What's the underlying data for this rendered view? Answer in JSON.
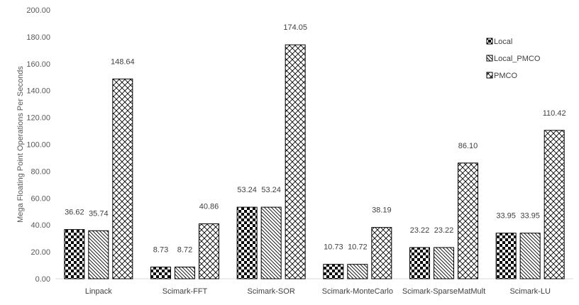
{
  "chart_data": {
    "type": "bar",
    "title": "",
    "xlabel": "",
    "ylabel": "Mega Floating Point Operations Per Seconds",
    "ylim": [
      0,
      200
    ],
    "yticks": [
      0,
      20,
      40,
      60,
      80,
      100,
      120,
      140,
      160,
      180,
      200
    ],
    "ytick_labels": [
      "0.00",
      "20.00",
      "40.00",
      "60.00",
      "80.00",
      "100.00",
      "120.00",
      "140.00",
      "160.00",
      "180.00",
      "200.00"
    ],
    "grid": false,
    "legend_position": "top-right",
    "categories": [
      "Linpack",
      "Scimark-FFT",
      "Scimark-SOR",
      "Scimark-MonteCarlo",
      "Scimark-SparseMatMult",
      "Scimark-LU"
    ],
    "series": [
      {
        "name": "Local",
        "pattern": "checkerboard",
        "values": [
          36.62,
          8.73,
          53.24,
          10.73,
          23.22,
          33.95
        ],
        "labels": [
          "36.62",
          "8.73",
          "53.24",
          "10.73",
          "23.22",
          "33.95"
        ]
      },
      {
        "name": "Local_PMCO",
        "pattern": "diagonal-stripes",
        "values": [
          35.74,
          8.72,
          53.24,
          10.72,
          23.22,
          33.95
        ],
        "labels": [
          "35.74",
          "8.72",
          "53.24",
          "10.72",
          "23.22",
          "33.95"
        ]
      },
      {
        "name": "PMCO",
        "pattern": "crosshatch",
        "values": [
          148.64,
          40.86,
          174.05,
          38.19,
          86.1,
          110.42
        ],
        "labels": [
          "148.64",
          "40.86",
          "174.05",
          "38.19",
          "86.10",
          "110.42"
        ]
      }
    ]
  },
  "colors": {
    "bar_stroke": "#000000",
    "axis_line": "#d9d9d9",
    "text": "#404040"
  }
}
